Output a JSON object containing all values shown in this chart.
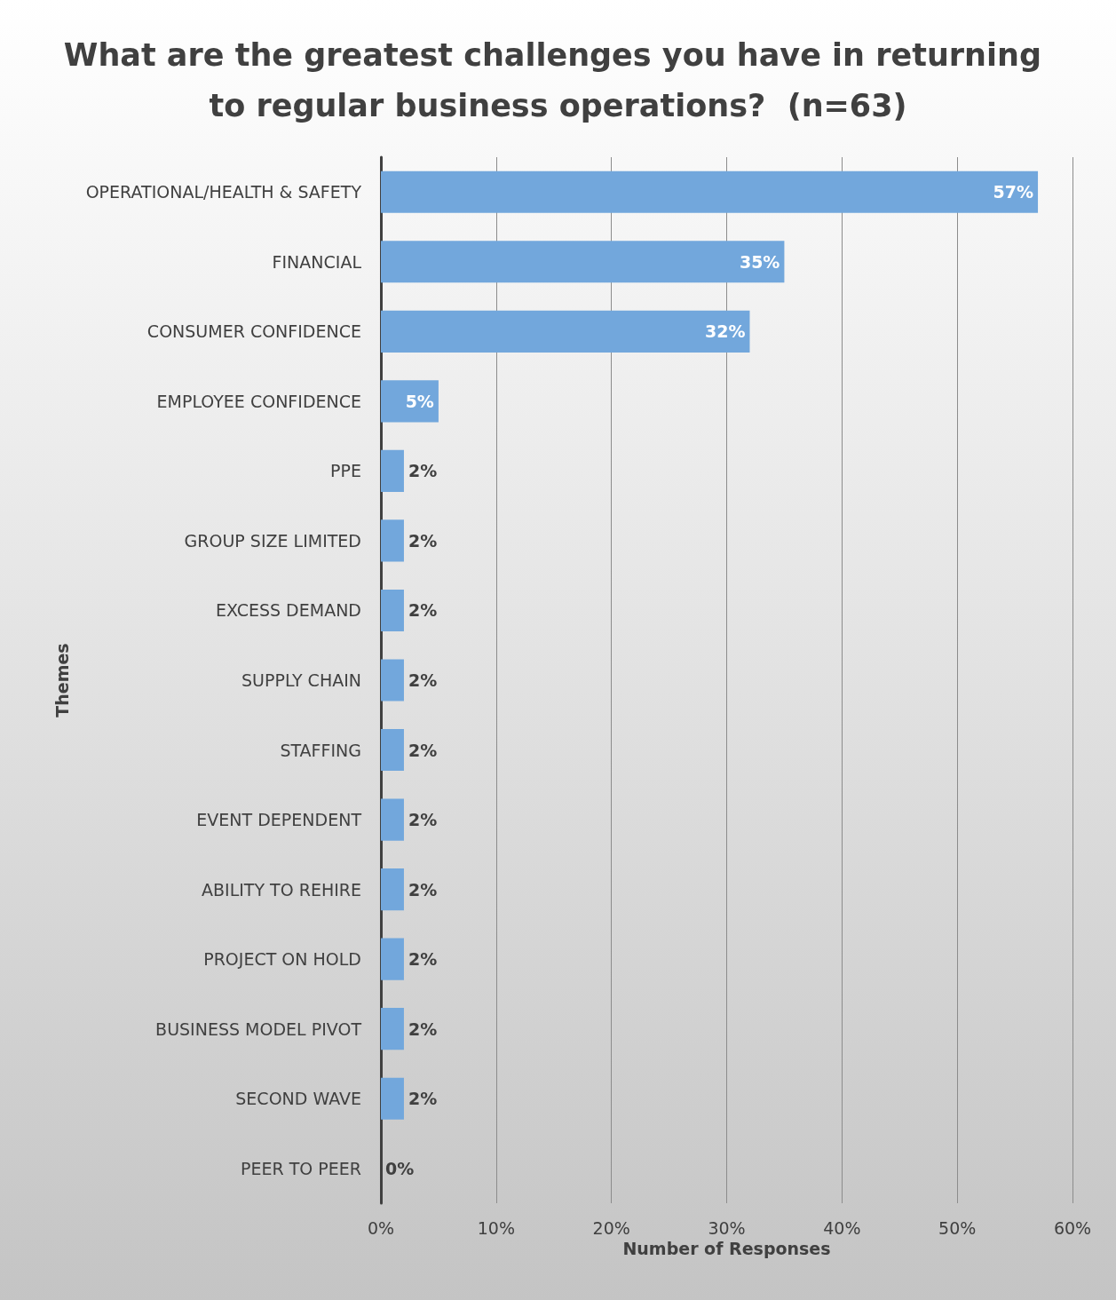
{
  "chart_data": {
    "type": "bar",
    "orientation": "horizontal",
    "title": "What are the greatest challenges you have in returning to regular business operations?  (n=63)",
    "xlabel": "Number of Responses",
    "ylabel": "Themes",
    "categories": [
      "OPERATIONAL/HEALTH & SAFETY",
      "FINANCIAL",
      "CONSUMER CONFIDENCE",
      "EMPLOYEE CONFIDENCE",
      "PPE",
      "GROUP SIZE LIMITED",
      "EXCESS DEMAND",
      "SUPPLY CHAIN",
      "STAFFING",
      "EVENT DEPENDENT",
      "ABILITY TO REHIRE",
      "PROJECT ON HOLD",
      "BUSINESS MODEL PIVOT",
      "SECOND WAVE",
      "PEER TO PEER"
    ],
    "values": [
      57,
      35,
      32,
      5,
      2,
      2,
      2,
      2,
      2,
      2,
      2,
      2,
      2,
      2,
      0
    ],
    "value_labels": [
      "57%",
      "35%",
      "32%",
      "5%",
      "2%",
      "2%",
      "2%",
      "2%",
      "2%",
      "2%",
      "2%",
      "2%",
      "2%",
      "2%",
      "0%"
    ],
    "color": "#72a7dc",
    "xlim": [
      0,
      60
    ],
    "xticks": [
      {
        "value": 0,
        "label": "0%"
      },
      {
        "value": 10,
        "label": "10%"
      },
      {
        "value": 20,
        "label": "20%"
      },
      {
        "value": 30,
        "label": "30%"
      },
      {
        "value": 40,
        "label": "40%"
      },
      {
        "value": 50,
        "label": "50%"
      },
      {
        "value": 60,
        "label": "60%"
      }
    ],
    "grid": "x"
  }
}
